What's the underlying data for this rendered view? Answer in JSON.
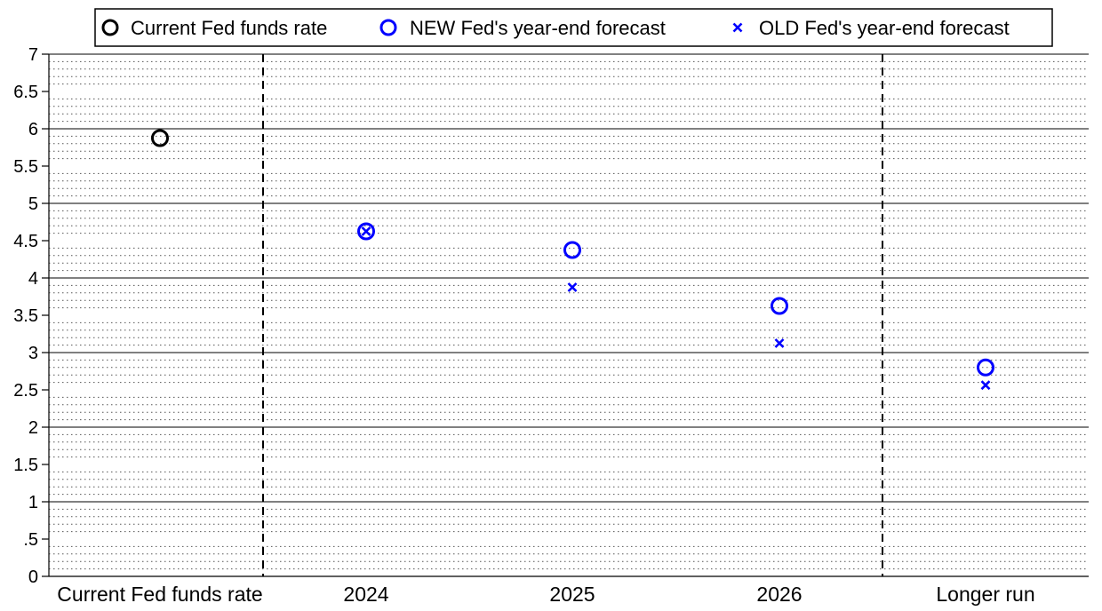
{
  "chart_data": {
    "type": "scatter",
    "categories": [
      "Current Fed funds rate",
      "2024",
      "2025",
      "2026",
      "Longer run"
    ],
    "y_ticks": [
      {
        "value": 0,
        "label": "0"
      },
      {
        "value": 0.5,
        "label": ".5"
      },
      {
        "value": 1,
        "label": "1"
      },
      {
        "value": 1.5,
        "label": "1.5"
      },
      {
        "value": 2,
        "label": "2"
      },
      {
        "value": 2.5,
        "label": "2.5"
      },
      {
        "value": 3,
        "label": "3"
      },
      {
        "value": 3.5,
        "label": "3.5"
      },
      {
        "value": 4,
        "label": "4"
      },
      {
        "value": 4.5,
        "label": "4.5"
      },
      {
        "value": 5,
        "label": "5"
      },
      {
        "value": 5.5,
        "label": "5.5"
      },
      {
        "value": 6,
        "label": "6"
      },
      {
        "value": 6.5,
        "label": "6.5"
      },
      {
        "value": 7,
        "label": "7"
      }
    ],
    "ylim": [
      0,
      7
    ],
    "grid": "major solid, minor dotted",
    "separators_after_categories": [
      0,
      3
    ],
    "legend_position": "top",
    "series": [
      {
        "name": "Current Fed funds rate",
        "marker": "circle",
        "color": "#000000",
        "points": [
          {
            "category": 0,
            "value": 5.875
          }
        ]
      },
      {
        "name": "NEW Fed's year-end forecast",
        "marker": "circle",
        "color": "#0000ff",
        "points": [
          {
            "category": 1,
            "value": 4.625
          },
          {
            "category": 2,
            "value": 4.375
          },
          {
            "category": 3,
            "value": 3.625
          },
          {
            "category": 4,
            "value": 2.8
          }
        ]
      },
      {
        "name": "OLD Fed's year-end forecast",
        "marker": "x",
        "color": "#0000ff",
        "points": [
          {
            "category": 1,
            "value": 4.625
          },
          {
            "category": 2,
            "value": 3.875
          },
          {
            "category": 3,
            "value": 3.125
          },
          {
            "category": 4,
            "value": 2.563
          }
        ]
      }
    ]
  }
}
